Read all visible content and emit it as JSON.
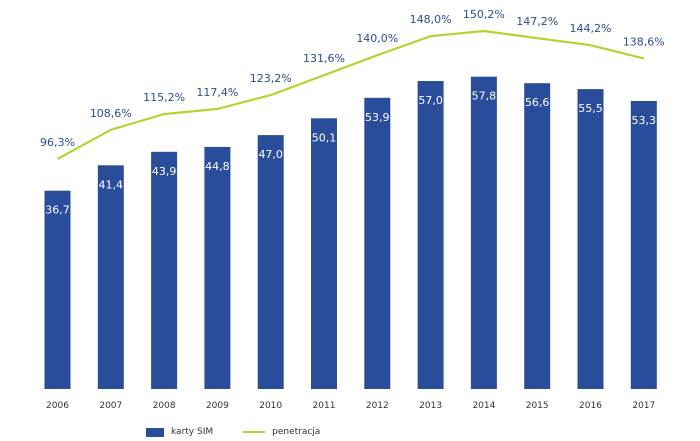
{
  "chart_data": {
    "type": "bar",
    "categories": [
      "2006",
      "2007",
      "2008",
      "2009",
      "2010",
      "2011",
      "2012",
      "2013",
      "2014",
      "2015",
      "2016",
      "2017"
    ],
    "series": [
      {
        "name": "karty SIM",
        "type": "bar",
        "values": [
          36.7,
          41.4,
          43.9,
          44.8,
          47.0,
          50.1,
          53.9,
          57.0,
          57.8,
          56.6,
          55.5,
          53.3
        ],
        "labels": [
          "36,7",
          "41,4",
          "43,9",
          "44,8",
          "47,0",
          "50,1",
          "53,9",
          "57,0",
          "57,8",
          "56,6",
          "55,5",
          "53,3"
        ],
        "color": "#2a4d9b"
      },
      {
        "name": "penetracja",
        "type": "line",
        "values": [
          96.3,
          108.6,
          115.2,
          117.4,
          123.2,
          131.6,
          140.0,
          148.0,
          150.2,
          147.2,
          144.2,
          138.6
        ],
        "labels": [
          "96,3%",
          "108,6%",
          "115,2%",
          "117,4%",
          "123,2%",
          "131,6%",
          "140,0%",
          "148,0%",
          "150,2%",
          "147,2%",
          "144,2%",
          "138,6%"
        ],
        "color": "#b5d334"
      }
    ],
    "bar_range": [
      0,
      65
    ],
    "line_range": [
      55,
      155
    ],
    "grid": false,
    "legend_placement": "bottom-left",
    "colors": {
      "bar_label": "#ffffff",
      "line_label": "#2e4b8f",
      "tick": "#333333"
    }
  }
}
